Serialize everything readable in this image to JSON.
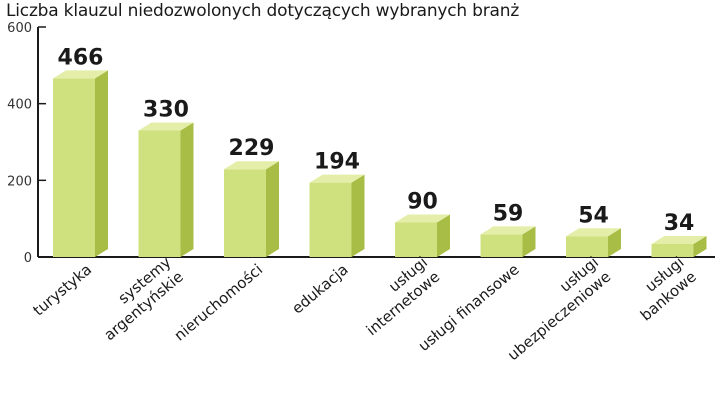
{
  "chart_data": {
    "type": "bar",
    "title": "Liczba klauzul niedozwolonych dotyczących wybranych branż",
    "xlabel": "",
    "ylabel": "",
    "ylim": [
      0,
      600
    ],
    "yticks": [
      "0",
      "200",
      "400",
      "600"
    ],
    "categories": [
      [
        "turystyka"
      ],
      [
        "systemy",
        "argentyńskie"
      ],
      [
        "nieruchomości"
      ],
      [
        "edukacja"
      ],
      [
        "usługi",
        "internetowe"
      ],
      [
        "usługi finansowe"
      ],
      [
        "usługi",
        "ubezpieczeniowe"
      ],
      [
        "usługi",
        "bankowe"
      ]
    ],
    "values": [
      466,
      330,
      229,
      194,
      90,
      59,
      54,
      34
    ],
    "value_labels": [
      "466",
      "330",
      "229",
      "194",
      "90",
      "59",
      "54",
      "34"
    ],
    "grid": false,
    "colors": {
      "front": "#cfe07f",
      "side": "#a8bd45",
      "top": "#e4eea8",
      "axis": "#1a1a1a"
    }
  }
}
